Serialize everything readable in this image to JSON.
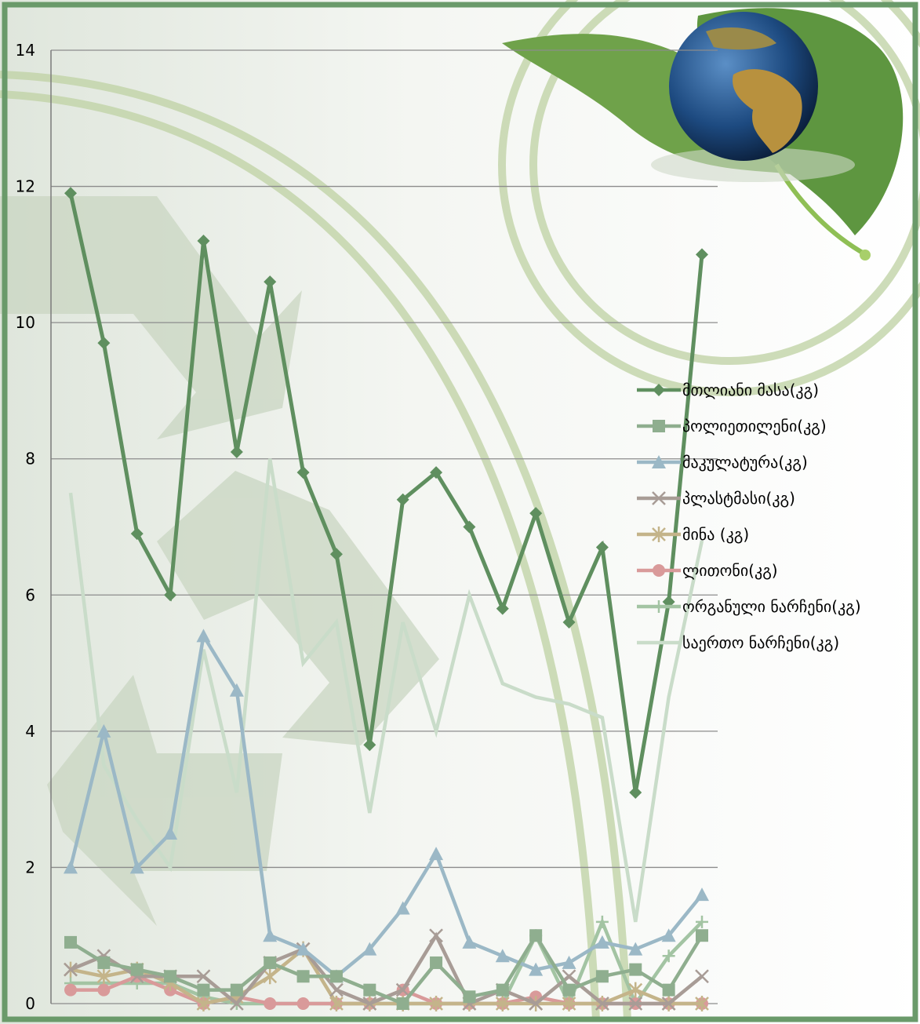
{
  "chart_data": {
    "type": "line",
    "title": "",
    "xlabel": "",
    "ylabel": "",
    "ylim": [
      0,
      14
    ],
    "yticks": [
      "0",
      "2",
      "4",
      "6",
      "8",
      "10",
      "12",
      "14"
    ],
    "grid": true,
    "legend_position": "right",
    "series": [
      {
        "name": "მთლიანი მასა(კგ)",
        "color": "#5f8f5f",
        "marker": "diamond",
        "values": [
          11.9,
          9.7,
          6.9,
          6.0,
          11.2,
          8.1,
          10.6,
          7.8,
          6.6,
          3.8,
          7.4,
          7.8,
          7.0,
          5.8,
          7.2,
          5.6,
          6.7,
          3.1,
          5.9,
          11.0
        ]
      },
      {
        "name": "პოლიეთილენი(კგ)",
        "color": "#8fae8f",
        "marker": "square",
        "values": [
          0.9,
          0.6,
          0.5,
          0.4,
          0.2,
          0.2,
          0.6,
          0.4,
          0.4,
          0.2,
          0.0,
          0.6,
          0.1,
          0.2,
          1.0,
          0.2,
          0.4,
          0.5,
          0.2,
          1.0
        ]
      },
      {
        "name": "მაკულატურა(კგ)",
        "color": "#9bb8c6",
        "marker": "triangle",
        "values": [
          2.0,
          4.0,
          2.0,
          2.5,
          5.4,
          4.6,
          1.0,
          0.8,
          0.4,
          0.8,
          1.4,
          2.2,
          0.9,
          0.7,
          0.5,
          0.6,
          0.9,
          0.8,
          1.0,
          1.6
        ]
      },
      {
        "name": "პლასტმასი(კგ)",
        "color": "#a89c96",
        "marker": "x",
        "values": [
          0.5,
          0.7,
          0.4,
          0.4,
          0.4,
          0.0,
          0.6,
          0.8,
          0.2,
          0.0,
          0.2,
          1.0,
          0.0,
          0.2,
          0.0,
          0.4,
          0.0,
          0.0,
          0.0,
          0.4
        ]
      },
      {
        "name": "მინა (კგ)",
        "color": "#c4b48a",
        "marker": "star",
        "values": [
          0.5,
          0.4,
          0.5,
          0.3,
          0.0,
          0.1,
          0.4,
          0.8,
          0.0,
          0.0,
          0.0,
          0.0,
          0.0,
          0.0,
          0.0,
          0.0,
          0.0,
          0.2,
          0.0,
          0.0
        ]
      },
      {
        "name": "ლითონი(კგ)",
        "color": "#d99a9a",
        "marker": "circle",
        "values": [
          0.2,
          0.2,
          0.4,
          0.2,
          0.0,
          0.1,
          0.0,
          0.0,
          0.0,
          0.0,
          0.2,
          0.0,
          0.0,
          0.0,
          0.1,
          0.0,
          0.0,
          0.0,
          0.0,
          0.0
        ]
      },
      {
        "name": "ორგანული ნარჩენი(კგ)",
        "color": "#a3c4a3",
        "marker": "plus",
        "values": [
          0.3,
          0.3,
          0.3,
          0.3,
          0.1,
          0.0,
          0.0,
          0.0,
          0.0,
          0.0,
          0.0,
          0.0,
          0.0,
          0.0,
          1.0,
          0.0,
          1.2,
          0.0,
          0.7,
          1.2
        ]
      },
      {
        "name": "საერთო ნარჩენი(კგ)",
        "color": "#c9dcc9",
        "marker": "none",
        "values": [
          7.5,
          3.5,
          2.7,
          2.0,
          5.2,
          3.1,
          8.0,
          5.0,
          5.6,
          2.8,
          5.6,
          4.0,
          6.0,
          4.7,
          4.5,
          4.4,
          4.2,
          1.2,
          4.5,
          6.8
        ]
      }
    ]
  },
  "colors": {
    "border": "#6a9a6a",
    "grid": "#8c8c8c",
    "arrows": "#c5d3be",
    "rings": "#c2d4a8"
  }
}
